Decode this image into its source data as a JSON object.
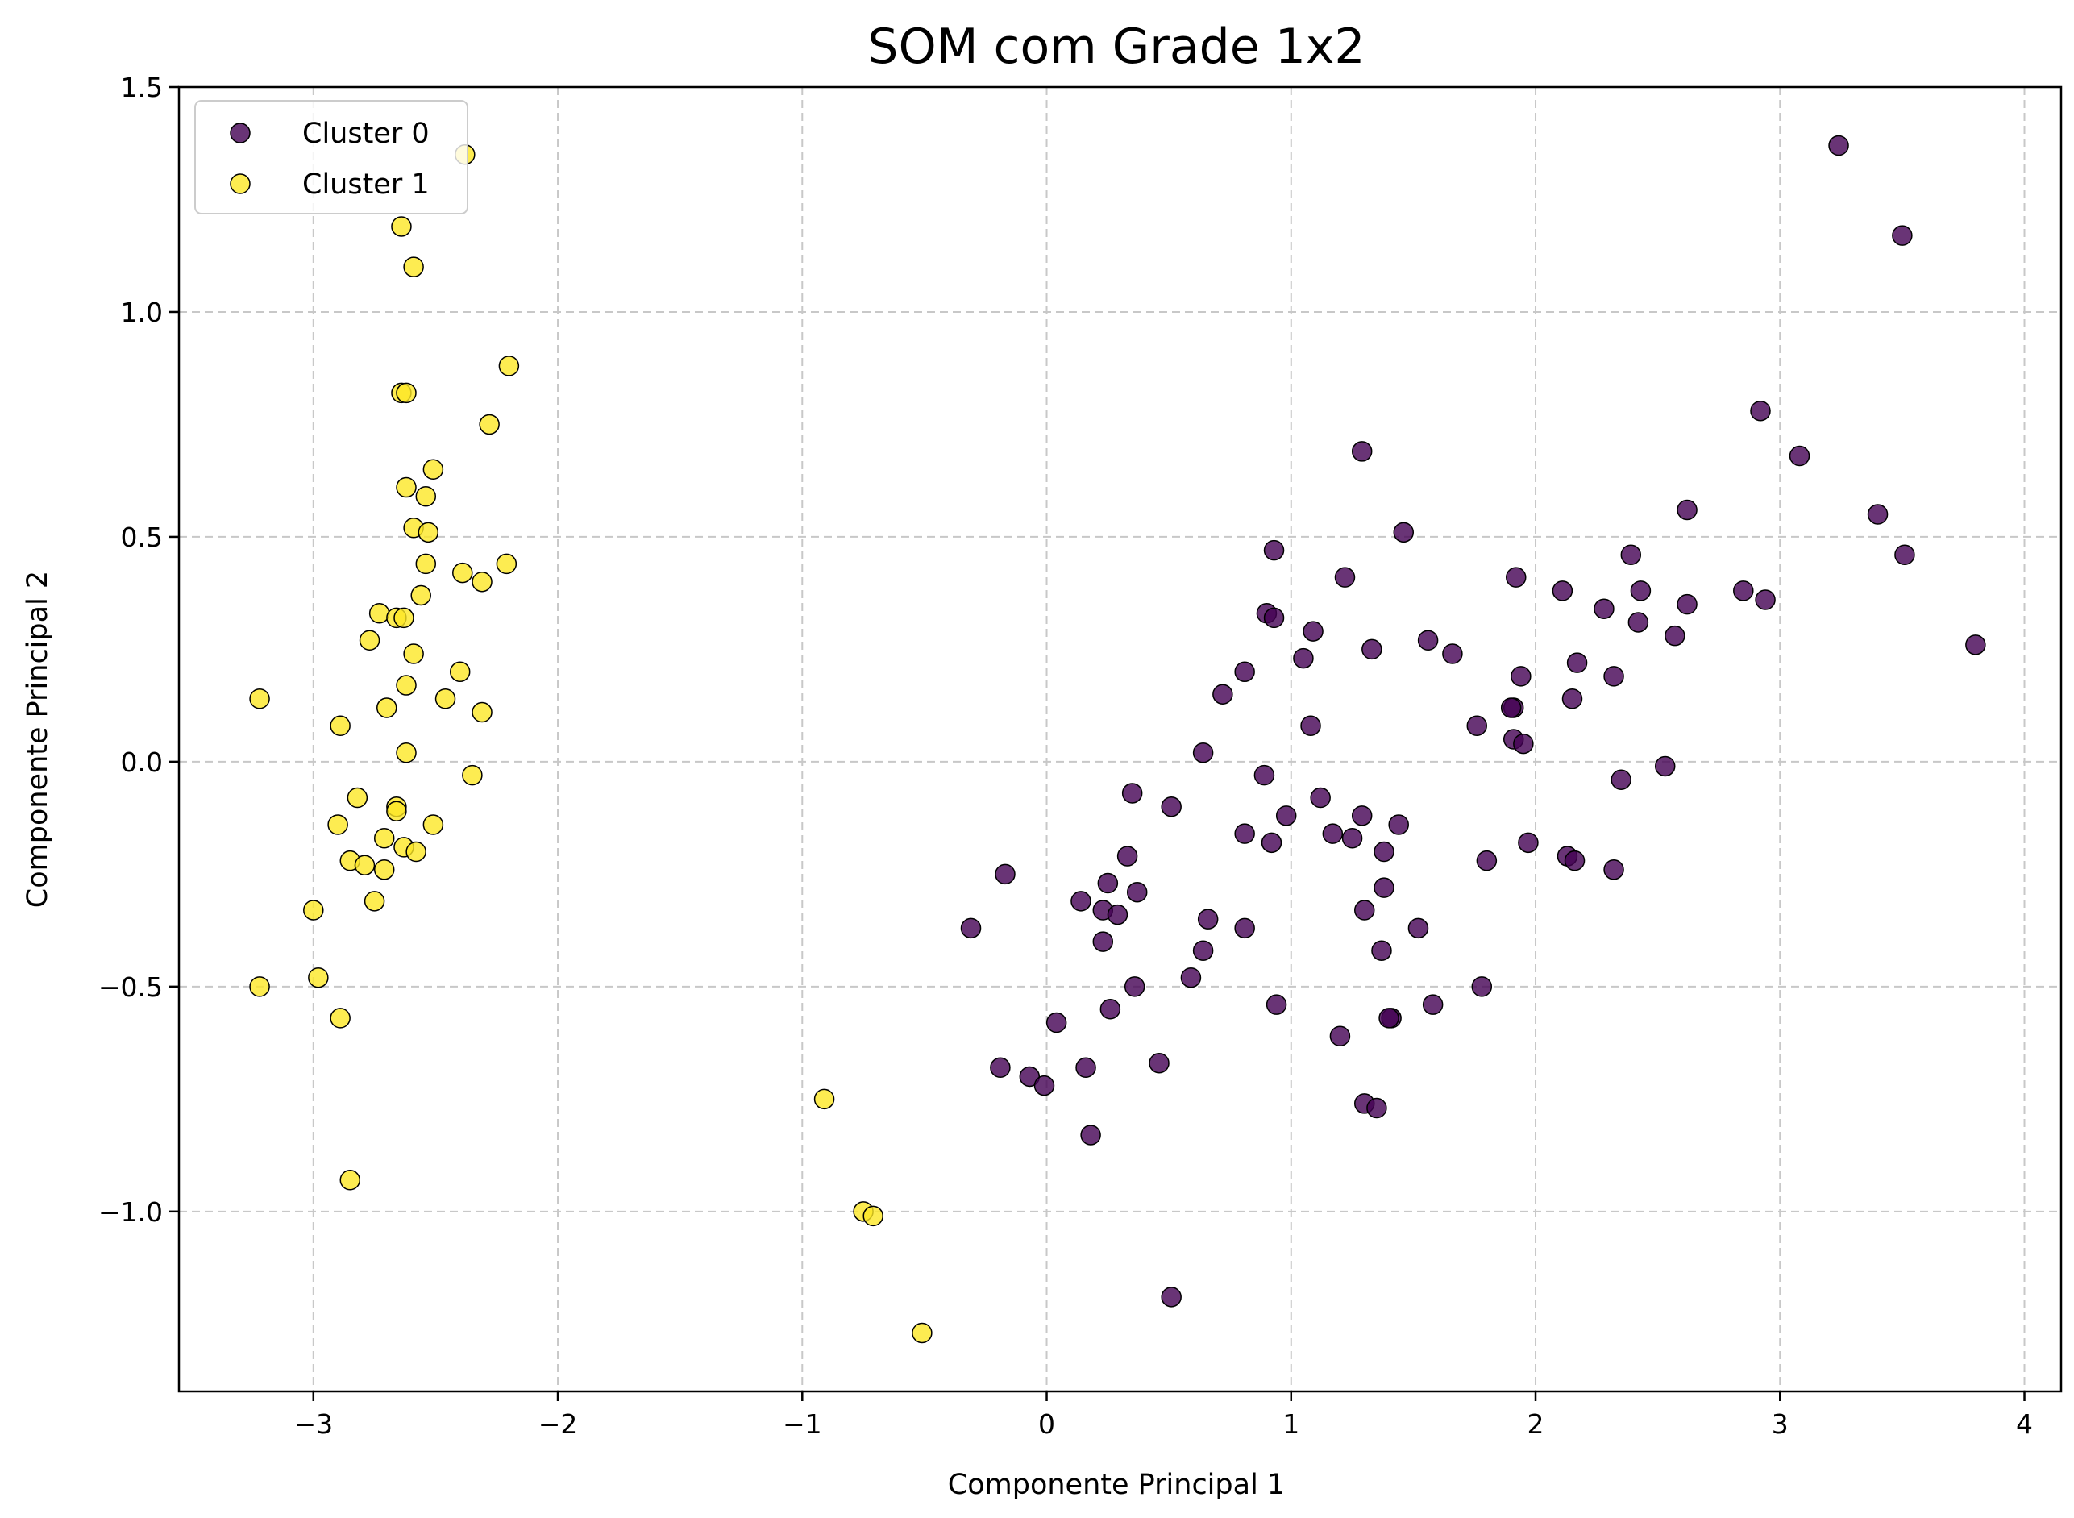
{
  "chart_data": {
    "type": "scatter",
    "title": "SOM com Grade 1x2",
    "xlabel": "Componente Principal 1",
    "ylabel": "Componente Principal 2",
    "xlim": [
      -3.55,
      4.15
    ],
    "ylim": [
      -1.4,
      1.5
    ],
    "xticks": [
      -3,
      -2,
      -1,
      0,
      1,
      2,
      3,
      4
    ],
    "xtick_labels": [
      "−3",
      "−2",
      "−1",
      "0",
      "1",
      "2",
      "3",
      "4"
    ],
    "yticks": [
      -1.0,
      -0.5,
      0.0,
      0.5,
      1.0,
      1.5
    ],
    "ytick_labels": [
      "−1.0",
      "−0.5",
      "0.0",
      "0.5",
      "1.0",
      "1.5"
    ],
    "grid": true,
    "legend_position": "top-left",
    "series": [
      {
        "name": "Cluster 0",
        "color": "#440154",
        "points": [
          [
            3.24,
            1.37
          ],
          [
            3.5,
            1.17
          ],
          [
            2.92,
            0.78
          ],
          [
            3.08,
            0.68
          ],
          [
            2.62,
            0.56
          ],
          [
            3.4,
            0.55
          ],
          [
            3.51,
            0.46
          ],
          [
            3.8,
            0.26
          ],
          [
            2.85,
            0.38
          ],
          [
            2.94,
            0.36
          ],
          [
            2.39,
            0.46
          ],
          [
            2.43,
            0.38
          ],
          [
            2.42,
            0.31
          ],
          [
            2.62,
            0.35
          ],
          [
            2.57,
            0.28
          ],
          [
            2.28,
            0.34
          ],
          [
            2.11,
            0.38
          ],
          [
            2.17,
            0.22
          ],
          [
            2.32,
            0.19
          ],
          [
            2.15,
            0.14
          ],
          [
            1.92,
            0.41
          ],
          [
            1.94,
            0.19
          ],
          [
            1.91,
            0.12
          ],
          [
            1.9,
            0.12
          ],
          [
            1.91,
            0.05
          ],
          [
            1.95,
            0.04
          ],
          [
            1.76,
            0.08
          ],
          [
            2.53,
            -0.01
          ],
          [
            2.35,
            -0.04
          ],
          [
            1.97,
            -0.18
          ],
          [
            2.13,
            -0.21
          ],
          [
            2.16,
            -0.22
          ],
          [
            2.32,
            -0.24
          ],
          [
            1.8,
            -0.22
          ],
          [
            1.78,
            -0.5
          ],
          [
            1.29,
            0.69
          ],
          [
            1.46,
            0.51
          ],
          [
            1.22,
            0.41
          ],
          [
            1.56,
            0.27
          ],
          [
            1.66,
            0.24
          ],
          [
            1.33,
            0.25
          ],
          [
            1.09,
            0.29
          ],
          [
            1.05,
            0.23
          ],
          [
            0.93,
            0.47
          ],
          [
            0.9,
            0.33
          ],
          [
            0.93,
            0.32
          ],
          [
            0.81,
            0.2
          ],
          [
            0.72,
            0.15
          ],
          [
            1.08,
            0.08
          ],
          [
            0.64,
            0.02
          ],
          [
            0.89,
            -0.03
          ],
          [
            1.12,
            -0.08
          ],
          [
            1.29,
            -0.12
          ],
          [
            0.98,
            -0.12
          ],
          [
            1.44,
            -0.14
          ],
          [
            1.17,
            -0.16
          ],
          [
            1.25,
            -0.17
          ],
          [
            0.81,
            -0.16
          ],
          [
            0.92,
            -0.18
          ],
          [
            1.38,
            -0.2
          ],
          [
            1.38,
            -0.28
          ],
          [
            1.52,
            -0.37
          ],
          [
            1.3,
            -0.33
          ],
          [
            1.37,
            -0.42
          ],
          [
            1.58,
            -0.54
          ],
          [
            1.41,
            -0.57
          ],
          [
            1.4,
            -0.57
          ],
          [
            1.2,
            -0.61
          ],
          [
            1.3,
            -0.76
          ],
          [
            1.35,
            -0.77
          ],
          [
            0.94,
            -0.54
          ],
          [
            0.81,
            -0.37
          ],
          [
            0.66,
            -0.35
          ],
          [
            0.64,
            -0.42
          ],
          [
            0.59,
            -0.48
          ],
          [
            0.35,
            -0.07
          ],
          [
            0.51,
            -0.1
          ],
          [
            0.33,
            -0.21
          ],
          [
            0.37,
            -0.29
          ],
          [
            0.25,
            -0.27
          ],
          [
            0.23,
            -0.33
          ],
          [
            0.29,
            -0.34
          ],
          [
            0.14,
            -0.31
          ],
          [
            0.23,
            -0.4
          ],
          [
            0.36,
            -0.5
          ],
          [
            0.26,
            -0.55
          ],
          [
            0.46,
            -0.67
          ],
          [
            0.04,
            -0.58
          ],
          [
            0.16,
            -0.68
          ],
          [
            -0.19,
            -0.68
          ],
          [
            -0.07,
            -0.7
          ],
          [
            -0.01,
            -0.72
          ],
          [
            0.18,
            -0.83
          ],
          [
            -0.31,
            -0.37
          ],
          [
            -0.17,
            -0.25
          ],
          [
            0.51,
            -1.19
          ]
        ]
      },
      {
        "name": "Cluster 1",
        "color": "#fde725",
        "points": [
          [
            -2.38,
            1.35
          ],
          [
            -2.64,
            1.19
          ],
          [
            -2.59,
            1.1
          ],
          [
            -2.2,
            0.88
          ],
          [
            -2.64,
            0.82
          ],
          [
            -2.62,
            0.82
          ],
          [
            -2.28,
            0.75
          ],
          [
            -2.51,
            0.65
          ],
          [
            -2.62,
            0.61
          ],
          [
            -2.54,
            0.59
          ],
          [
            -2.59,
            0.52
          ],
          [
            -2.53,
            0.51
          ],
          [
            -2.54,
            0.44
          ],
          [
            -2.21,
            0.44
          ],
          [
            -2.39,
            0.42
          ],
          [
            -2.31,
            0.4
          ],
          [
            -2.56,
            0.37
          ],
          [
            -2.73,
            0.33
          ],
          [
            -2.66,
            0.32
          ],
          [
            -2.63,
            0.32
          ],
          [
            -2.77,
            0.27
          ],
          [
            -2.59,
            0.24
          ],
          [
            -2.4,
            0.2
          ],
          [
            -2.62,
            0.17
          ],
          [
            -2.46,
            0.14
          ],
          [
            -2.7,
            0.12
          ],
          [
            -2.31,
            0.11
          ],
          [
            -2.89,
            0.08
          ],
          [
            -2.62,
            0.02
          ],
          [
            -2.35,
            -0.03
          ],
          [
            -2.82,
            -0.08
          ],
          [
            -2.66,
            -0.1
          ],
          [
            -2.66,
            -0.11
          ],
          [
            -2.51,
            -0.14
          ],
          [
            -2.9,
            -0.14
          ],
          [
            -2.71,
            -0.17
          ],
          [
            -2.63,
            -0.19
          ],
          [
            -2.58,
            -0.2
          ],
          [
            -2.85,
            -0.22
          ],
          [
            -2.79,
            -0.23
          ],
          [
            -2.71,
            -0.24
          ],
          [
            -2.75,
            -0.31
          ],
          [
            -3.0,
            -0.33
          ],
          [
            -3.22,
            0.14
          ],
          [
            -3.22,
            -0.5
          ],
          [
            -2.98,
            -0.48
          ],
          [
            -2.89,
            -0.57
          ],
          [
            -2.85,
            -0.93
          ],
          [
            -0.91,
            -0.75
          ],
          [
            -0.75,
            -1.0
          ],
          [
            -0.71,
            -1.01
          ],
          [
            -0.51,
            -1.27
          ]
        ]
      }
    ]
  }
}
